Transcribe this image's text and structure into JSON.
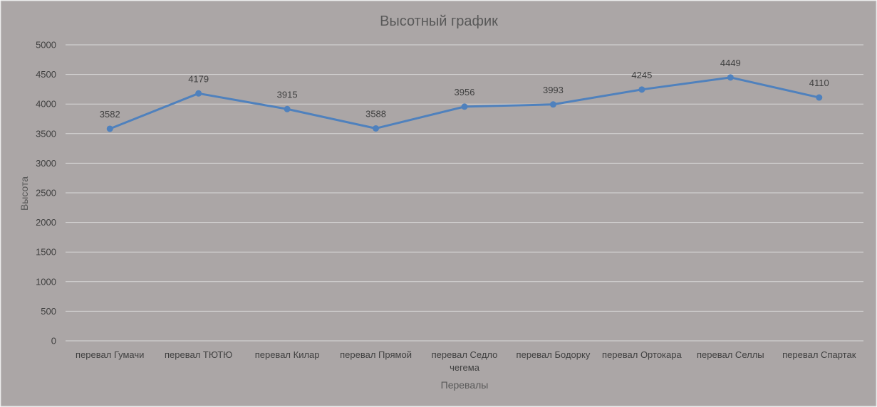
{
  "chart_data": {
    "type": "line",
    "title": "Высотный график",
    "xlabel": "Перевалы",
    "ylabel": "Высота",
    "ylim": [
      0,
      5000
    ],
    "yticks": [
      0,
      500,
      1000,
      1500,
      2000,
      2500,
      3000,
      3500,
      4000,
      4500,
      5000
    ],
    "grid": true,
    "legend": "none",
    "categories": [
      [
        "перевал Гумачи"
      ],
      [
        "перевал ТЮТЮ"
      ],
      [
        "перевал Килар"
      ],
      [
        "перевал Прямой"
      ],
      [
        "перевал Седло",
        "чегема"
      ],
      [
        "перевал Бодорку"
      ],
      [
        "перевал Ортокара"
      ],
      [
        "перевал Селлы"
      ],
      [
        "перевал Спартак"
      ]
    ],
    "series": [
      {
        "values": [
          3582,
          4179,
          3915,
          3588,
          3956,
          3993,
          4245,
          4449,
          4110
        ],
        "color": "#4f81bd"
      }
    ],
    "colors": {
      "background": "#aba6a6",
      "gridline": "#d9d9d9"
    }
  }
}
